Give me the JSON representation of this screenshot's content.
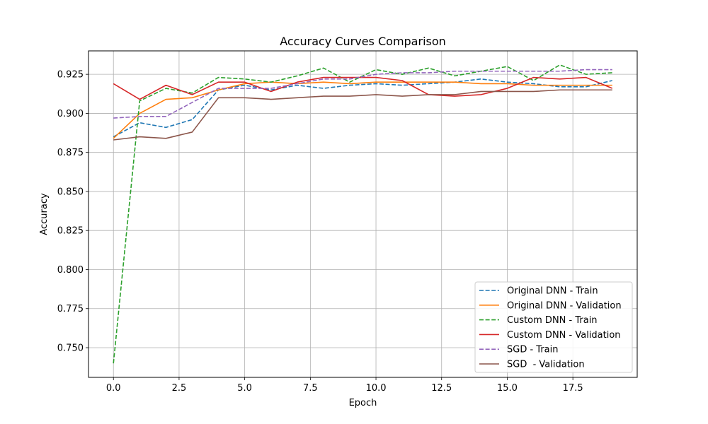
{
  "chart_data": {
    "type": "line",
    "title": "Accuracy Curves Comparison",
    "xlabel": "Epoch",
    "ylabel": "Accuracy",
    "xlim": [
      -0.95,
      19.95
    ],
    "ylim": [
      0.731,
      0.94
    ],
    "xticks": [
      0.0,
      2.5,
      5.0,
      7.5,
      10.0,
      12.5,
      15.0,
      17.5
    ],
    "xtick_labels": [
      "0.0",
      "2.5",
      "5.0",
      "7.5",
      "10.0",
      "12.5",
      "15.0",
      "17.5"
    ],
    "yticks": [
      0.75,
      0.775,
      0.8,
      0.825,
      0.85,
      0.875,
      0.9,
      0.925
    ],
    "ytick_labels": [
      "0.750",
      "0.775",
      "0.800",
      "0.825",
      "0.850",
      "0.875",
      "0.900",
      "0.925"
    ],
    "grid": true,
    "legend_position": "lower-right",
    "x": [
      0,
      1,
      2,
      3,
      4,
      5,
      6,
      7,
      8,
      9,
      10,
      11,
      12,
      13,
      14,
      15,
      16,
      17,
      18,
      19
    ],
    "series": [
      {
        "name": "Original DNN - Train",
        "color": "#1f77b4",
        "dashed": true,
        "values": [
          0.885,
          0.894,
          0.891,
          0.896,
          0.915,
          0.918,
          0.915,
          0.918,
          0.916,
          0.918,
          0.919,
          0.918,
          0.919,
          0.92,
          0.922,
          0.92,
          0.919,
          0.917,
          0.917,
          0.921
        ]
      },
      {
        "name": "Original DNN - Validation",
        "color": "#ff7f0e",
        "dashed": false,
        "values": [
          0.884,
          0.9,
          0.909,
          0.91,
          0.915,
          0.919,
          0.92,
          0.919,
          0.92,
          0.919,
          0.92,
          0.92,
          0.92,
          0.92,
          0.919,
          0.919,
          0.918,
          0.918,
          0.918,
          0.918
        ]
      },
      {
        "name": "Custom DNN - Train",
        "color": "#2ca02c",
        "dashed": true,
        "values": [
          0.74,
          0.908,
          0.916,
          0.913,
          0.923,
          0.922,
          0.92,
          0.924,
          0.929,
          0.92,
          0.928,
          0.925,
          0.929,
          0.924,
          0.927,
          0.93,
          0.921,
          0.931,
          0.925,
          0.926
        ]
      },
      {
        "name": "Custom DNN - Validation",
        "color": "#d62728",
        "dashed": false,
        "values": [
          0.919,
          0.909,
          0.918,
          0.912,
          0.92,
          0.92,
          0.914,
          0.92,
          0.923,
          0.923,
          0.923,
          0.921,
          0.912,
          0.911,
          0.912,
          0.916,
          0.923,
          0.922,
          0.923,
          0.916
        ]
      },
      {
        "name": "SGD - Train",
        "color": "#9467bd",
        "dashed": true,
        "values": [
          0.897,
          0.898,
          0.898,
          0.907,
          0.916,
          0.916,
          0.916,
          0.919,
          0.922,
          0.922,
          0.925,
          0.926,
          0.926,
          0.927,
          0.927,
          0.927,
          0.927,
          0.927,
          0.928,
          0.928
        ]
      },
      {
        "name": "SGD  - Validation",
        "color": "#8c564b",
        "dashed": false,
        "values": [
          0.883,
          0.885,
          0.884,
          0.888,
          0.91,
          0.91,
          0.909,
          0.91,
          0.911,
          0.911,
          0.912,
          0.911,
          0.912,
          0.912,
          0.914,
          0.914,
          0.914,
          0.915,
          0.915,
          0.915
        ]
      }
    ]
  }
}
